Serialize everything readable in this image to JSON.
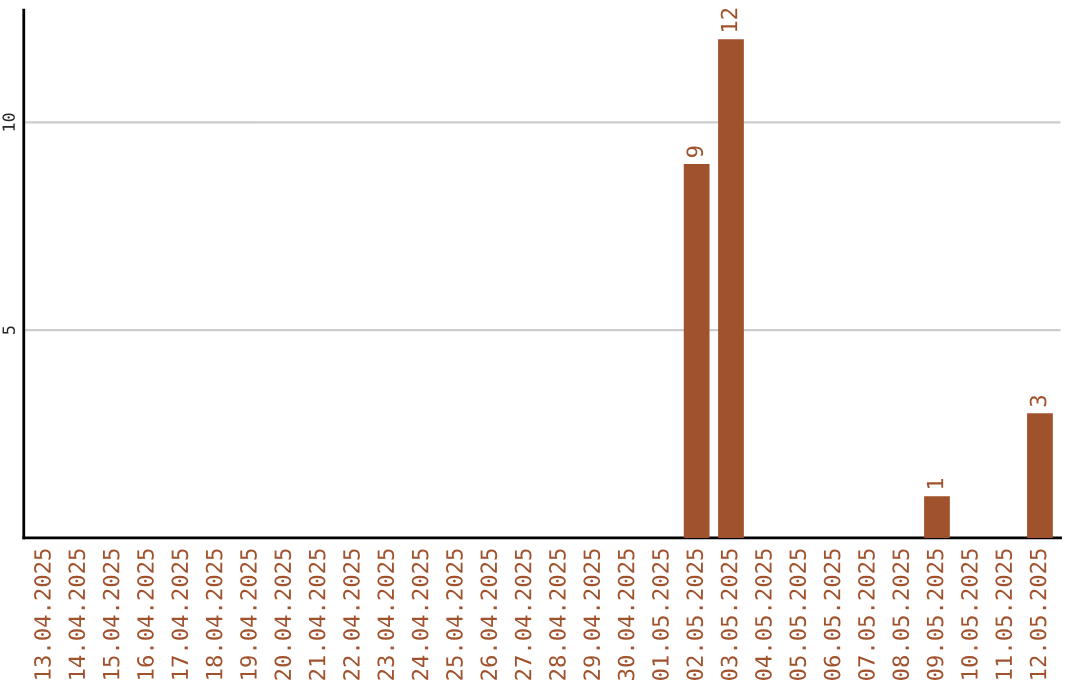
{
  "chart_data": {
    "type": "bar",
    "categories": [
      "13.04.2025",
      "14.04.2025",
      "15.04.2025",
      "16.04.2025",
      "17.04.2025",
      "18.04.2025",
      "19.04.2025",
      "20.04.2025",
      "21.04.2025",
      "22.04.2025",
      "23.04.2025",
      "24.04.2025",
      "25.04.2025",
      "26.04.2025",
      "27.04.2025",
      "28.04.2025",
      "29.04.2025",
      "30.04.2025",
      "01.05.2025",
      "02.05.2025",
      "03.05.2025",
      "04.05.2025",
      "05.05.2025",
      "06.05.2025",
      "07.05.2025",
      "08.05.2025",
      "09.05.2025",
      "10.05.2025",
      "11.05.2025",
      "12.05.2025"
    ],
    "values": [
      0,
      0,
      0,
      0,
      0,
      0,
      0,
      0,
      0,
      0,
      0,
      0,
      0,
      0,
      0,
      0,
      0,
      0,
      0,
      9,
      12,
      0,
      0,
      0,
      0,
      0,
      1,
      0,
      0,
      3
    ],
    "value_labels": [
      null,
      null,
      null,
      null,
      null,
      null,
      null,
      null,
      null,
      null,
      null,
      null,
      null,
      null,
      null,
      null,
      null,
      null,
      null,
      "9",
      "12",
      null,
      null,
      null,
      null,
      null,
      "1",
      null,
      null,
      "3"
    ],
    "color": "#a0522d",
    "ylim": [
      0,
      12.7
    ],
    "yticks": [
      5,
      10
    ],
    "grid": "y",
    "legend": false
  }
}
